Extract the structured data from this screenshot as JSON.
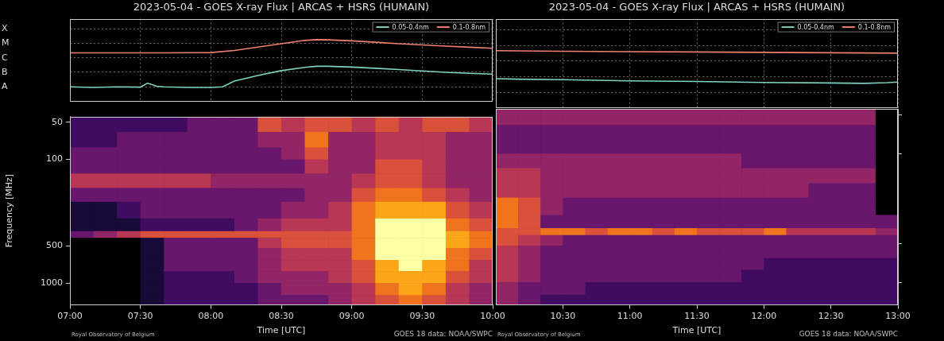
{
  "chart_data": [
    {
      "type": "line",
      "title": "2023-05-04 - GOES X-ray Flux | ARCAS + HSRS (HUMAIN)",
      "log": "y",
      "grid": true,
      "legend": "upper right",
      "tick_labels": "y",
      "xlim": [
        420,
        600
      ],
      "xticks": [
        420,
        450,
        480,
        510,
        540,
        570,
        600
      ],
      "ylim": [
        1e-09,
        0.0005
      ],
      "yticks": [
        {
          "value": 1e-08,
          "label": "A"
        },
        {
          "value": 1e-07,
          "label": "B"
        },
        {
          "value": 1e-06,
          "label": "C"
        },
        {
          "value": 1e-05,
          "label": "M"
        },
        {
          "value": 0.0001,
          "label": "X"
        }
      ],
      "series": [
        {
          "name": "0.05-0.4nm",
          "color": "#7fd4c1",
          "x": [
            420,
            430,
            440,
            450,
            453,
            457,
            460,
            470,
            480,
            485,
            490,
            500,
            510,
            520,
            525,
            530,
            540,
            550,
            560,
            570,
            580,
            590,
            600
          ],
          "values": [
            1e-08,
            9e-09,
            1e-08,
            9.5e-09,
            1.8e-08,
            1.1e-08,
            1e-08,
            9e-09,
            9e-09,
            1e-08,
            2.5e-08,
            6e-08,
            1.3e-07,
            2.2e-07,
            2.6e-07,
            2.6e-07,
            2.3e-07,
            1.9e-07,
            1.55e-07,
            1.25e-07,
            1e-07,
            8.5e-08,
            7.5e-08
          ]
        },
        {
          "name": "0.1-0.8nm",
          "color": "#f08070",
          "x": [
            420,
            440,
            460,
            480,
            490,
            500,
            510,
            520,
            525,
            530,
            540,
            550,
            560,
            570,
            580,
            590,
            600
          ],
          "values": [
            2.2e-06,
            2.2e-06,
            2.2e-06,
            2.3e-06,
            3.2e-06,
            5.5e-06,
            9.5e-06,
            1.6e-05,
            1.8e-05,
            1.75e-05,
            1.5e-05,
            1.2e-05,
            9.5e-06,
            7.8e-06,
            6.5e-06,
            5.4e-06,
            4.6e-06
          ]
        }
      ]
    },
    {
      "type": "heatmap",
      "xlabel": "Time [UTC]",
      "ylabel": "Frequency [MHz]",
      "log": "y",
      "xlim": [
        420,
        600
      ],
      "xticks": [
        {
          "value": 420,
          "label": "07:00"
        },
        {
          "value": 450,
          "label": "07:30"
        },
        {
          "value": 480,
          "label": "08:00"
        },
        {
          "value": 510,
          "label": "08:30"
        },
        {
          "value": 540,
          "label": "09:00"
        },
        {
          "value": 570,
          "label": "09:30"
        },
        {
          "value": 600,
          "label": "10:00"
        }
      ],
      "ylim": [
        1500,
        45
      ],
      "yticks": [
        50,
        100,
        500,
        1000
      ],
      "x_edges": [
        420,
        430,
        440,
        450,
        460,
        470,
        480,
        490,
        500,
        510,
        520,
        530,
        540,
        550,
        560,
        570,
        580,
        590,
        600
      ],
      "y_edges": [
        45,
        60,
        80,
        100,
        130,
        170,
        220,
        300,
        380,
        430,
        520,
        650,
        800,
        1000,
        1250,
        1500
      ],
      "cells": [
        [
          2,
          2,
          2,
          2,
          2,
          3,
          3,
          3,
          6,
          5,
          6,
          6,
          5,
          6,
          5,
          6,
          6,
          5
        ],
        [
          2,
          2,
          3,
          3,
          3,
          3,
          3,
          3,
          4,
          4,
          7,
          4,
          4,
          5,
          5,
          5,
          4,
          4
        ],
        [
          3,
          3,
          3,
          3,
          3,
          3,
          3,
          3,
          3,
          4,
          6,
          4,
          4,
          5,
          5,
          5,
          4,
          4
        ],
        [
          3,
          3,
          3,
          3,
          3,
          3,
          3,
          3,
          3,
          3,
          5,
          4,
          4,
          6,
          6,
          5,
          4,
          4
        ],
        [
          5,
          5,
          5,
          5,
          5,
          5,
          4,
          4,
          4,
          4,
          4,
          4,
          5,
          6,
          6,
          5,
          4,
          4
        ],
        [
          3,
          3,
          3,
          3,
          3,
          3,
          3,
          3,
          3,
          3,
          4,
          4,
          6,
          7,
          7,
          6,
          5,
          4
        ],
        [
          1,
          1,
          2,
          3,
          3,
          3,
          3,
          3,
          3,
          4,
          4,
          5,
          7,
          8,
          8,
          8,
          6,
          5
        ],
        [
          1,
          1,
          1,
          2,
          2,
          2,
          2,
          3,
          4,
          5,
          5,
          5,
          7,
          9,
          9,
          9,
          7,
          6
        ],
        [
          3,
          4,
          5,
          6,
          6,
          6,
          6,
          6,
          6,
          6,
          6,
          6,
          7,
          9,
          9,
          9,
          8,
          7
        ],
        [
          0,
          0,
          0,
          1,
          3,
          3,
          3,
          3,
          5,
          6,
          6,
          6,
          7,
          9,
          9,
          9,
          8,
          7
        ],
        [
          0,
          0,
          0,
          1,
          3,
          3,
          3,
          3,
          4,
          5,
          5,
          5,
          7,
          9,
          9,
          9,
          7,
          6
        ],
        [
          0,
          0,
          0,
          1,
          3,
          3,
          3,
          3,
          4,
          5,
          5,
          5,
          6,
          8,
          9,
          8,
          7,
          5
        ],
        [
          0,
          0,
          0,
          1,
          2,
          2,
          2,
          3,
          4,
          4,
          4,
          5,
          6,
          8,
          8,
          8,
          6,
          5
        ],
        [
          0,
          0,
          0,
          1,
          2,
          2,
          2,
          2,
          3,
          4,
          4,
          4,
          5,
          7,
          8,
          7,
          5,
          4
        ],
        [
          0,
          0,
          0,
          1,
          2,
          2,
          2,
          2,
          3,
          3,
          3,
          4,
          5,
          6,
          7,
          6,
          5,
          4
        ]
      ],
      "annotations": [
        "Royal Observatory of Belgium",
        "GOES 18 data: NOAA/SWPC"
      ]
    },
    {
      "type": "line",
      "title": "2023-05-04 - GOES X-ray Flux | ARCAS + HSRS (HUMAIN)",
      "log": "y",
      "grid": true,
      "legend": "upper right",
      "tick_labels": false,
      "xlim": [
        600,
        780
      ],
      "xticks": [
        630,
        660,
        690,
        720,
        750,
        780
      ],
      "ylim": [
        1e-09,
        0.0005
      ],
      "yticks": [
        1e-08,
        1e-07,
        1e-06,
        1e-05,
        0.0001
      ],
      "series": [
        {
          "name": "0.05-0.4nm",
          "color": "#7fd4c1",
          "x": [
            600,
            610,
            630,
            660,
            690,
            720,
            750,
            765,
            775,
            780
          ],
          "values": [
            7.5e-08,
            7e-08,
            6.5e-08,
            5.5e-08,
            5e-08,
            4.3e-08,
            4e-08,
            3.8e-08,
            4.2e-08,
            4.6e-08
          ]
        },
        {
          "name": "0.1-0.8nm",
          "color": "#f08070",
          "x": [
            600,
            630,
            660,
            690,
            720,
            750,
            780
          ],
          "values": [
            4.6e-06,
            4.2e-06,
            4e-06,
            3.8e-06,
            3.6e-06,
            3.4e-06,
            3.2e-06
          ]
        }
      ]
    },
    {
      "type": "heatmap",
      "xlabel": "Time [UTC]",
      "log": "y",
      "tick_labels": "x",
      "xlim": [
        600,
        780
      ],
      "xticks": [
        {
          "value": 630,
          "label": "10:30"
        },
        {
          "value": 660,
          "label": "11:00"
        },
        {
          "value": 690,
          "label": "11:30"
        },
        {
          "value": 720,
          "label": "12:00"
        },
        {
          "value": 750,
          "label": "12:30"
        },
        {
          "value": 780,
          "label": "13:00"
        }
      ],
      "ylim": [
        1500,
        45
      ],
      "yticks": [
        50,
        100,
        500,
        1000
      ],
      "x_edges": [
        600,
        610,
        620,
        630,
        640,
        650,
        660,
        670,
        680,
        690,
        700,
        710,
        720,
        730,
        740,
        750,
        760,
        770,
        780
      ],
      "y_edges": [
        45,
        60,
        80,
        100,
        130,
        170,
        220,
        300,
        380,
        430,
        520,
        650,
        800,
        1000,
        1250,
        1500
      ],
      "cells": [
        [
          4,
          4,
          4,
          4,
          4,
          4,
          4,
          4,
          4,
          4,
          4,
          4,
          4,
          4,
          4,
          4,
          4,
          0
        ],
        [
          3,
          3,
          3,
          3,
          3,
          3,
          3,
          3,
          3,
          3,
          3,
          3,
          3,
          3,
          3,
          3,
          3,
          0
        ],
        [
          3,
          3,
          3,
          3,
          3,
          3,
          3,
          3,
          3,
          3,
          3,
          3,
          3,
          3,
          3,
          3,
          3,
          0
        ],
        [
          4,
          4,
          4,
          4,
          4,
          4,
          4,
          4,
          4,
          4,
          4,
          3,
          3,
          3,
          3,
          3,
          3,
          0
        ],
        [
          5,
          5,
          4,
          4,
          4,
          4,
          4,
          4,
          4,
          4,
          4,
          4,
          4,
          4,
          4,
          4,
          4,
          0
        ],
        [
          5,
          5,
          4,
          4,
          4,
          4,
          4,
          4,
          4,
          4,
          4,
          4,
          4,
          4,
          3,
          3,
          3,
          0
        ],
        [
          7,
          6,
          4,
          3,
          3,
          3,
          3,
          3,
          3,
          3,
          3,
          3,
          3,
          3,
          3,
          3,
          3,
          0
        ],
        [
          7,
          6,
          3,
          3,
          3,
          3,
          3,
          3,
          3,
          3,
          3,
          3,
          3,
          3,
          3,
          3,
          3,
          3
        ],
        [
          6,
          6,
          7,
          7,
          6,
          7,
          7,
          6,
          7,
          6,
          6,
          6,
          7,
          5,
          5,
          5,
          5,
          4
        ],
        [
          6,
          5,
          4,
          3,
          3,
          3,
          3,
          3,
          3,
          3,
          3,
          3,
          3,
          3,
          3,
          3,
          3,
          3
        ],
        [
          5,
          4,
          3,
          3,
          3,
          3,
          3,
          3,
          3,
          3,
          3,
          3,
          3,
          3,
          3,
          3,
          3,
          3
        ],
        [
          5,
          4,
          3,
          3,
          3,
          3,
          3,
          3,
          3,
          3,
          3,
          3,
          2,
          2,
          2,
          2,
          2,
          2
        ],
        [
          5,
          4,
          3,
          3,
          3,
          3,
          3,
          3,
          3,
          3,
          3,
          2,
          2,
          2,
          2,
          2,
          2,
          2
        ],
        [
          4,
          3,
          3,
          3,
          2,
          2,
          2,
          2,
          2,
          2,
          2,
          2,
          2,
          2,
          2,
          2,
          2,
          2
        ],
        [
          4,
          3,
          2,
          2,
          2,
          2,
          2,
          2,
          2,
          2,
          2,
          2,
          2,
          2,
          2,
          2,
          2,
          2
        ]
      ],
      "annotations": [
        "Royal Observatory of Belgium",
        "GOES 18 data: NOAA/SWPC"
      ]
    }
  ]
}
